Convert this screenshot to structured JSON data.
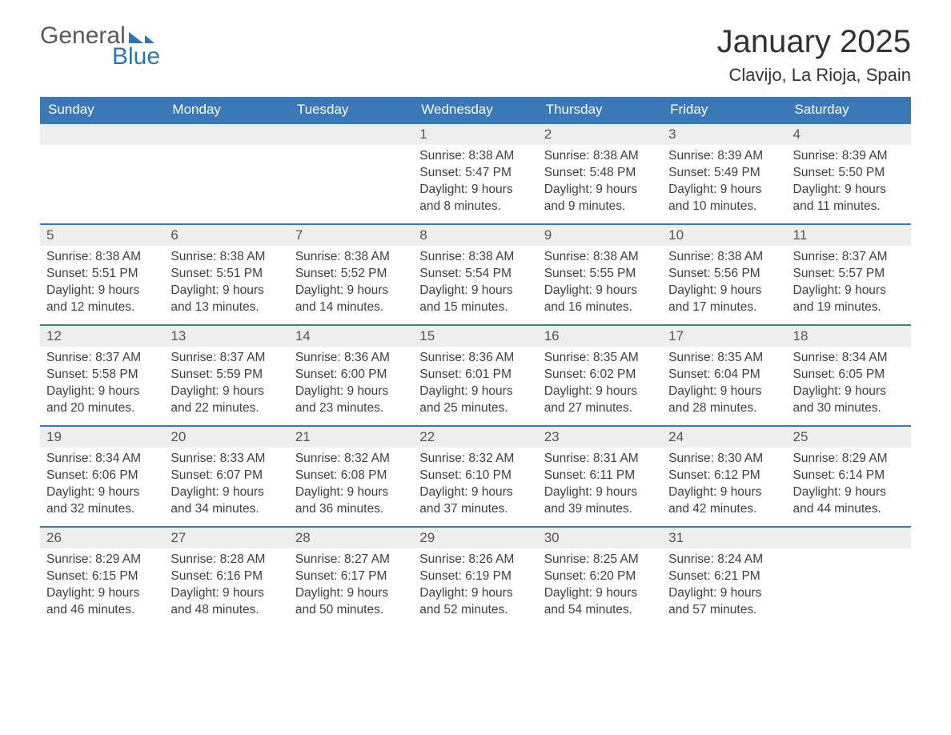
{
  "brand": {
    "word1": "General",
    "word2": "Blue"
  },
  "title": "January 2025",
  "location": "Clavijo, La Rioja, Spain",
  "colors": {
    "header_bg": "#3b78b8",
    "header_text": "#ffffff",
    "daynum_bg": "#eeeeee",
    "rule": "#3b78b8",
    "logo_accent": "#2f74b5",
    "text": "#333333"
  },
  "day_labels": [
    "Sunday",
    "Monday",
    "Tuesday",
    "Wednesday",
    "Thursday",
    "Friday",
    "Saturday"
  ],
  "weeks": [
    [
      null,
      null,
      null,
      {
        "n": "1",
        "sr": "Sunrise: 8:38 AM",
        "ss": "Sunset: 5:47 PM",
        "d1": "Daylight: 9 hours",
        "d2": "and 8 minutes."
      },
      {
        "n": "2",
        "sr": "Sunrise: 8:38 AM",
        "ss": "Sunset: 5:48 PM",
        "d1": "Daylight: 9 hours",
        "d2": "and 9 minutes."
      },
      {
        "n": "3",
        "sr": "Sunrise: 8:39 AM",
        "ss": "Sunset: 5:49 PM",
        "d1": "Daylight: 9 hours",
        "d2": "and 10 minutes."
      },
      {
        "n": "4",
        "sr": "Sunrise: 8:39 AM",
        "ss": "Sunset: 5:50 PM",
        "d1": "Daylight: 9 hours",
        "d2": "and 11 minutes."
      }
    ],
    [
      {
        "n": "5",
        "sr": "Sunrise: 8:38 AM",
        "ss": "Sunset: 5:51 PM",
        "d1": "Daylight: 9 hours",
        "d2": "and 12 minutes."
      },
      {
        "n": "6",
        "sr": "Sunrise: 8:38 AM",
        "ss": "Sunset: 5:51 PM",
        "d1": "Daylight: 9 hours",
        "d2": "and 13 minutes."
      },
      {
        "n": "7",
        "sr": "Sunrise: 8:38 AM",
        "ss": "Sunset: 5:52 PM",
        "d1": "Daylight: 9 hours",
        "d2": "and 14 minutes."
      },
      {
        "n": "8",
        "sr": "Sunrise: 8:38 AM",
        "ss": "Sunset: 5:54 PM",
        "d1": "Daylight: 9 hours",
        "d2": "and 15 minutes."
      },
      {
        "n": "9",
        "sr": "Sunrise: 8:38 AM",
        "ss": "Sunset: 5:55 PM",
        "d1": "Daylight: 9 hours",
        "d2": "and 16 minutes."
      },
      {
        "n": "10",
        "sr": "Sunrise: 8:38 AM",
        "ss": "Sunset: 5:56 PM",
        "d1": "Daylight: 9 hours",
        "d2": "and 17 minutes."
      },
      {
        "n": "11",
        "sr": "Sunrise: 8:37 AM",
        "ss": "Sunset: 5:57 PM",
        "d1": "Daylight: 9 hours",
        "d2": "and 19 minutes."
      }
    ],
    [
      {
        "n": "12",
        "sr": "Sunrise: 8:37 AM",
        "ss": "Sunset: 5:58 PM",
        "d1": "Daylight: 9 hours",
        "d2": "and 20 minutes."
      },
      {
        "n": "13",
        "sr": "Sunrise: 8:37 AM",
        "ss": "Sunset: 5:59 PM",
        "d1": "Daylight: 9 hours",
        "d2": "and 22 minutes."
      },
      {
        "n": "14",
        "sr": "Sunrise: 8:36 AM",
        "ss": "Sunset: 6:00 PM",
        "d1": "Daylight: 9 hours",
        "d2": "and 23 minutes."
      },
      {
        "n": "15",
        "sr": "Sunrise: 8:36 AM",
        "ss": "Sunset: 6:01 PM",
        "d1": "Daylight: 9 hours",
        "d2": "and 25 minutes."
      },
      {
        "n": "16",
        "sr": "Sunrise: 8:35 AM",
        "ss": "Sunset: 6:02 PM",
        "d1": "Daylight: 9 hours",
        "d2": "and 27 minutes."
      },
      {
        "n": "17",
        "sr": "Sunrise: 8:35 AM",
        "ss": "Sunset: 6:04 PM",
        "d1": "Daylight: 9 hours",
        "d2": "and 28 minutes."
      },
      {
        "n": "18",
        "sr": "Sunrise: 8:34 AM",
        "ss": "Sunset: 6:05 PM",
        "d1": "Daylight: 9 hours",
        "d2": "and 30 minutes."
      }
    ],
    [
      {
        "n": "19",
        "sr": "Sunrise: 8:34 AM",
        "ss": "Sunset: 6:06 PM",
        "d1": "Daylight: 9 hours",
        "d2": "and 32 minutes."
      },
      {
        "n": "20",
        "sr": "Sunrise: 8:33 AM",
        "ss": "Sunset: 6:07 PM",
        "d1": "Daylight: 9 hours",
        "d2": "and 34 minutes."
      },
      {
        "n": "21",
        "sr": "Sunrise: 8:32 AM",
        "ss": "Sunset: 6:08 PM",
        "d1": "Daylight: 9 hours",
        "d2": "and 36 minutes."
      },
      {
        "n": "22",
        "sr": "Sunrise: 8:32 AM",
        "ss": "Sunset: 6:10 PM",
        "d1": "Daylight: 9 hours",
        "d2": "and 37 minutes."
      },
      {
        "n": "23",
        "sr": "Sunrise: 8:31 AM",
        "ss": "Sunset: 6:11 PM",
        "d1": "Daylight: 9 hours",
        "d2": "and 39 minutes."
      },
      {
        "n": "24",
        "sr": "Sunrise: 8:30 AM",
        "ss": "Sunset: 6:12 PM",
        "d1": "Daylight: 9 hours",
        "d2": "and 42 minutes."
      },
      {
        "n": "25",
        "sr": "Sunrise: 8:29 AM",
        "ss": "Sunset: 6:14 PM",
        "d1": "Daylight: 9 hours",
        "d2": "and 44 minutes."
      }
    ],
    [
      {
        "n": "26",
        "sr": "Sunrise: 8:29 AM",
        "ss": "Sunset: 6:15 PM",
        "d1": "Daylight: 9 hours",
        "d2": "and 46 minutes."
      },
      {
        "n": "27",
        "sr": "Sunrise: 8:28 AM",
        "ss": "Sunset: 6:16 PM",
        "d1": "Daylight: 9 hours",
        "d2": "and 48 minutes."
      },
      {
        "n": "28",
        "sr": "Sunrise: 8:27 AM",
        "ss": "Sunset: 6:17 PM",
        "d1": "Daylight: 9 hours",
        "d2": "and 50 minutes."
      },
      {
        "n": "29",
        "sr": "Sunrise: 8:26 AM",
        "ss": "Sunset: 6:19 PM",
        "d1": "Daylight: 9 hours",
        "d2": "and 52 minutes."
      },
      {
        "n": "30",
        "sr": "Sunrise: 8:25 AM",
        "ss": "Sunset: 6:20 PM",
        "d1": "Daylight: 9 hours",
        "d2": "and 54 minutes."
      },
      {
        "n": "31",
        "sr": "Sunrise: 8:24 AM",
        "ss": "Sunset: 6:21 PM",
        "d1": "Daylight: 9 hours",
        "d2": "and 57 minutes."
      },
      null
    ]
  ]
}
